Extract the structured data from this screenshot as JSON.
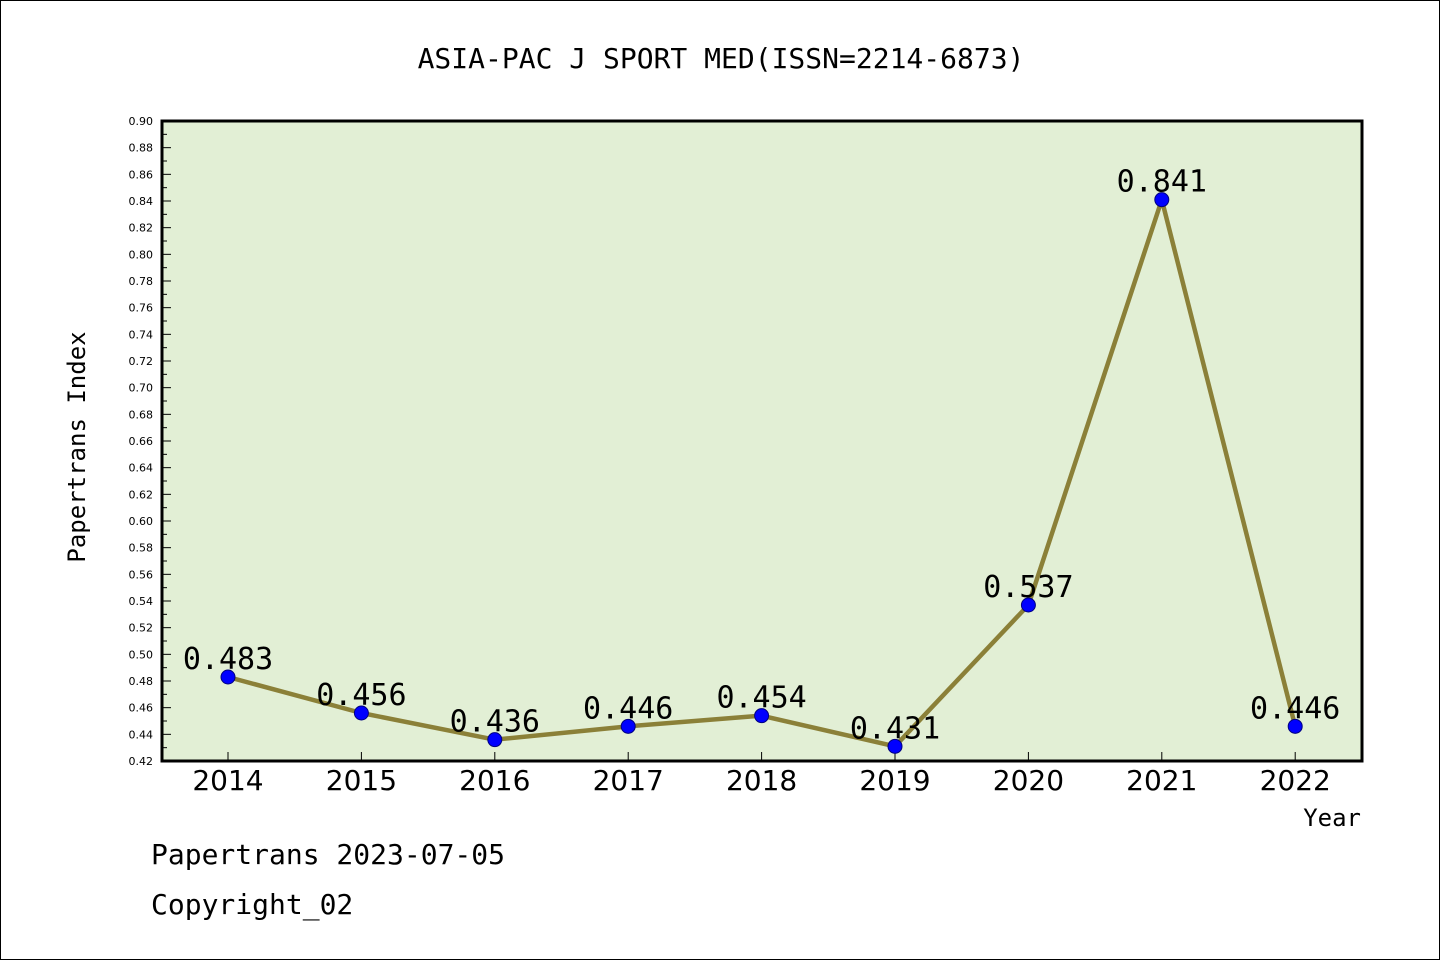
{
  "chart_data": {
    "type": "line",
    "title": "ASIA-PAC J SPORT MED(ISSN=2214-6873)",
    "xlabel": "Year",
    "ylabel": "Papertrans Index",
    "categories": [
      "2014",
      "2015",
      "2016",
      "2017",
      "2018",
      "2019",
      "2020",
      "2021",
      "2022"
    ],
    "series": [
      {
        "values": [
          0.483,
          0.456,
          0.436,
          0.446,
          0.454,
          0.431,
          0.537,
          0.841,
          0.446
        ],
        "labels": [
          "0.483",
          "0.456",
          "0.436",
          "0.446",
          "0.454",
          "0.431",
          "0.537",
          "0.841",
          "0.446"
        ]
      }
    ],
    "ylim": [
      0.42,
      0.9
    ],
    "yticks": [
      "0.42",
      "0.44",
      "0.46",
      "0.48",
      "0.50",
      "0.52",
      "0.54",
      "0.56",
      "0.58",
      "0.60",
      "0.62",
      "0.64",
      "0.66",
      "0.68",
      "0.70",
      "0.72",
      "0.74",
      "0.76",
      "0.78",
      "0.80",
      "0.82",
      "0.84",
      "0.86",
      "0.88",
      "0.90"
    ],
    "grid": false,
    "legend": "none",
    "colors": {
      "plot_bg": "#e2efd5",
      "line": "#8b8038",
      "marker": "#0000ff",
      "marker_edge": "#000080"
    }
  },
  "footer": {
    "line1": "Papertrans 2023-07-05",
    "line2": "Copyright_02"
  }
}
